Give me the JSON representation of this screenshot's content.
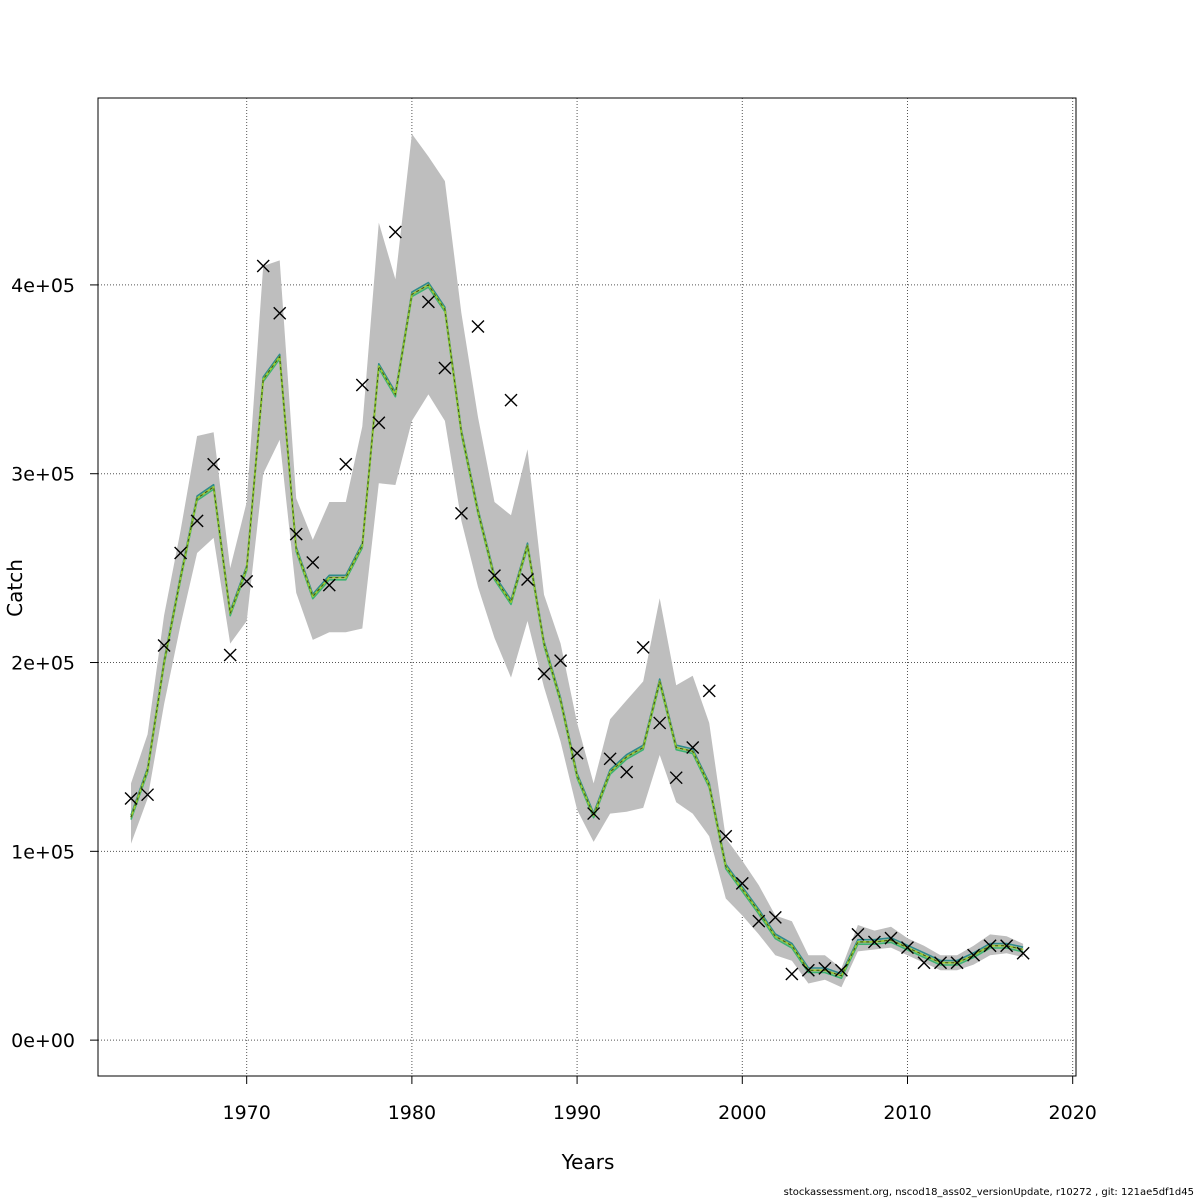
{
  "chart_data": {
    "type": "line",
    "title": "",
    "xlabel": "Years",
    "ylabel": "Catch",
    "xlim": [
      1961,
      2020.2
    ],
    "ylim": [
      -19000,
      499000
    ],
    "x_ticks": [
      1970,
      1980,
      1990,
      2000,
      2010,
      2020
    ],
    "x_tick_labels": [
      "1970",
      "1980",
      "1990",
      "2000",
      "2010",
      "2020"
    ],
    "y_ticks": [
      0,
      100000,
      200000,
      300000,
      400000
    ],
    "y_tick_labels": [
      "0e+00",
      "1e+05",
      "2e+05",
      "3e+05",
      "4e+05"
    ],
    "grid": true,
    "colors": {
      "band": "#bebebe",
      "observed": "#000000",
      "lines": [
        "#1a1aaa",
        "#2e8b8b",
        "#3cb371",
        "#9acd32"
      ]
    },
    "years": [
      1963,
      1964,
      1965,
      1966,
      1967,
      1968,
      1969,
      1970,
      1971,
      1972,
      1973,
      1974,
      1975,
      1976,
      1977,
      1978,
      1979,
      1980,
      1981,
      1982,
      1983,
      1984,
      1985,
      1986,
      1987,
      1988,
      1989,
      1990,
      1991,
      1992,
      1993,
      1994,
      1995,
      1996,
      1997,
      1998,
      1999,
      2000,
      2001,
      2002,
      2003,
      2004,
      2005,
      2006,
      2007,
      2008,
      2009,
      2010,
      2011,
      2012,
      2013,
      2014,
      2015,
      2016,
      2017
    ],
    "fitted": [
      118000,
      143000,
      200000,
      245000,
      287000,
      293000,
      226000,
      250000,
      350000,
      362000,
      260000,
      235000,
      245000,
      245000,
      262000,
      357000,
      342000,
      395000,
      400000,
      387000,
      322000,
      280000,
      245000,
      232000,
      262000,
      210000,
      180000,
      140000,
      119000,
      142000,
      150000,
      155000,
      190000,
      155000,
      153000,
      135000,
      92000,
      80000,
      68000,
      55000,
      50000,
      37000,
      37000,
      34000,
      52000,
      52000,
      53000,
      49000,
      45000,
      41000,
      41000,
      45000,
      50000,
      50000,
      48000
    ],
    "band_upper": [
      136000,
      162000,
      225000,
      270000,
      320000,
      322000,
      250000,
      285000,
      410000,
      413000,
      287000,
      265000,
      285000,
      285000,
      325000,
      433000,
      403000,
      480000,
      468000,
      455000,
      385000,
      330000,
      285000,
      278000,
      313000,
      236000,
      210000,
      168000,
      136000,
      170000,
      180000,
      190000,
      234000,
      188000,
      193000,
      168000,
      107000,
      95000,
      82000,
      66000,
      63000,
      45000,
      45000,
      38000,
      61000,
      58000,
      60000,
      54000,
      50000,
      45000,
      45000,
      50000,
      56000,
      55000,
      51000
    ],
    "band_lower": [
      104000,
      128000,
      178000,
      220000,
      258000,
      266000,
      210000,
      222000,
      300000,
      318000,
      237000,
      212000,
      216000,
      216000,
      218000,
      295000,
      294000,
      328000,
      342000,
      328000,
      275000,
      240000,
      213000,
      192000,
      222000,
      187000,
      158000,
      122000,
      105000,
      120000,
      121000,
      123000,
      151000,
      126000,
      120000,
      108000,
      75000,
      66000,
      56000,
      45000,
      42000,
      30000,
      32000,
      28000,
      47000,
      48000,
      49000,
      45000,
      41000,
      37000,
      37000,
      40000,
      45000,
      46000,
      44000
    ],
    "observed": [
      128000,
      130000,
      209000,
      258000,
      275000,
      305000,
      204000,
      243000,
      410000,
      385000,
      268000,
      253000,
      241000,
      305000,
      347000,
      327000,
      428000,
      null,
      391000,
      356000,
      279000,
      378000,
      246000,
      339000,
      244000,
      194000,
      201000,
      152000,
      120000,
      149000,
      142000,
      208000,
      168000,
      139000,
      155000,
      185000,
      108000,
      83000,
      63000,
      65000,
      35000,
      37000,
      38000,
      37000,
      56000,
      52000,
      54000,
      49000,
      41000,
      41000,
      41000,
      45000,
      50000,
      50000,
      46000
    ]
  },
  "footer_text": "stockassessment.org, nscod18_ass02_versionUpdate, r10272 , git: 121ae5df1d45"
}
